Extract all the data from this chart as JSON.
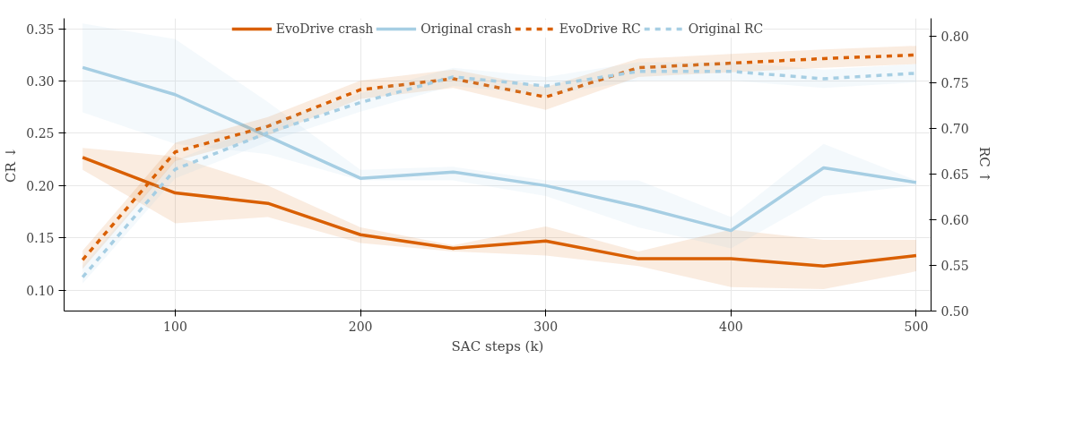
{
  "chart_data": {
    "type": "line",
    "xlabel": "SAC steps (k)",
    "ylabel": "CR ↓",
    "y2label": "RC ↑",
    "x": [
      50,
      100,
      150,
      200,
      250,
      300,
      350,
      400,
      450,
      500
    ],
    "xlim": [
      40,
      508
    ],
    "xticks": [
      100,
      200,
      300,
      400,
      500
    ],
    "ylim": [
      0.08,
      0.36
    ],
    "yticks": [
      {
        "value": 0.1,
        "label": "0.10"
      },
      0.15,
      {
        "value": 0.2,
        "label": "0.20"
      },
      0.25,
      {
        "value": 0.3,
        "label": "0.30"
      },
      0.35
    ],
    "y2lim": [
      0.5,
      0.82
    ],
    "y2ticks": [
      {
        "value": 0.5,
        "label": "0.50"
      },
      0.55,
      {
        "value": 0.6,
        "label": "0.60"
      },
      0.65,
      {
        "value": 0.7,
        "label": "0.70"
      },
      0.75,
      {
        "value": 0.8,
        "label": "0.80"
      }
    ],
    "grid": true,
    "legend": "top",
    "marker": "none",
    "series": [
      {
        "name": "EvoDrive crash",
        "color": "#d95f02",
        "line_style": "solid",
        "values": [
          0.227,
          0.193,
          0.183,
          0.153,
          0.14,
          0.147,
          0.13,
          0.13,
          0.123,
          0.133
        ],
        "lower": [
          0.215,
          0.164,
          0.17,
          0.145,
          0.137,
          0.133,
          0.123,
          0.103,
          0.101,
          0.118
        ],
        "upper": [
          0.236,
          0.228,
          0.2,
          0.16,
          0.143,
          0.161,
          0.137,
          0.158,
          0.148,
          0.148
        ]
      },
      {
        "name": "Original crash",
        "color": "#a6cee3",
        "line_style": "solid",
        "values": [
          0.313,
          0.287,
          0.247,
          0.207,
          0.213,
          0.2,
          0.18,
          0.157,
          0.217,
          0.203
        ],
        "lower": [
          0.27,
          0.24,
          0.23,
          0.205,
          0.205,
          0.19,
          0.16,
          0.14,
          0.19,
          0.2
        ],
        "upper": [
          0.355,
          0.34,
          0.28,
          0.215,
          0.218,
          0.205,
          0.205,
          0.17,
          0.24,
          0.205
        ]
      },
      {
        "name": "EvoDrive RC",
        "color": "#d95f02",
        "line_style": "dashed",
        "axis": "y2",
        "values": [
          0.556,
          0.674,
          0.702,
          0.742,
          0.754,
          0.734,
          0.766,
          0.771,
          0.776,
          0.78
        ],
        "lower": [
          0.546,
          0.664,
          0.692,
          0.732,
          0.744,
          0.72,
          0.756,
          0.761,
          0.766,
          0.77
        ],
        "upper": [
          0.566,
          0.684,
          0.712,
          0.752,
          0.764,
          0.745,
          0.776,
          0.781,
          0.786,
          0.79
        ]
      },
      {
        "name": "Original RC",
        "color": "#a6cee3",
        "line_style": "dashed",
        "axis": "y2",
        "values": [
          0.537,
          0.655,
          0.695,
          0.728,
          0.756,
          0.746,
          0.762,
          0.762,
          0.754,
          0.76
        ],
        "lower": [
          0.53,
          0.645,
          0.685,
          0.718,
          0.746,
          0.736,
          0.752,
          0.752,
          0.744,
          0.75
        ],
        "upper": [
          0.55,
          0.665,
          0.705,
          0.738,
          0.766,
          0.756,
          0.772,
          0.772,
          0.764,
          0.77
        ]
      }
    ]
  }
}
